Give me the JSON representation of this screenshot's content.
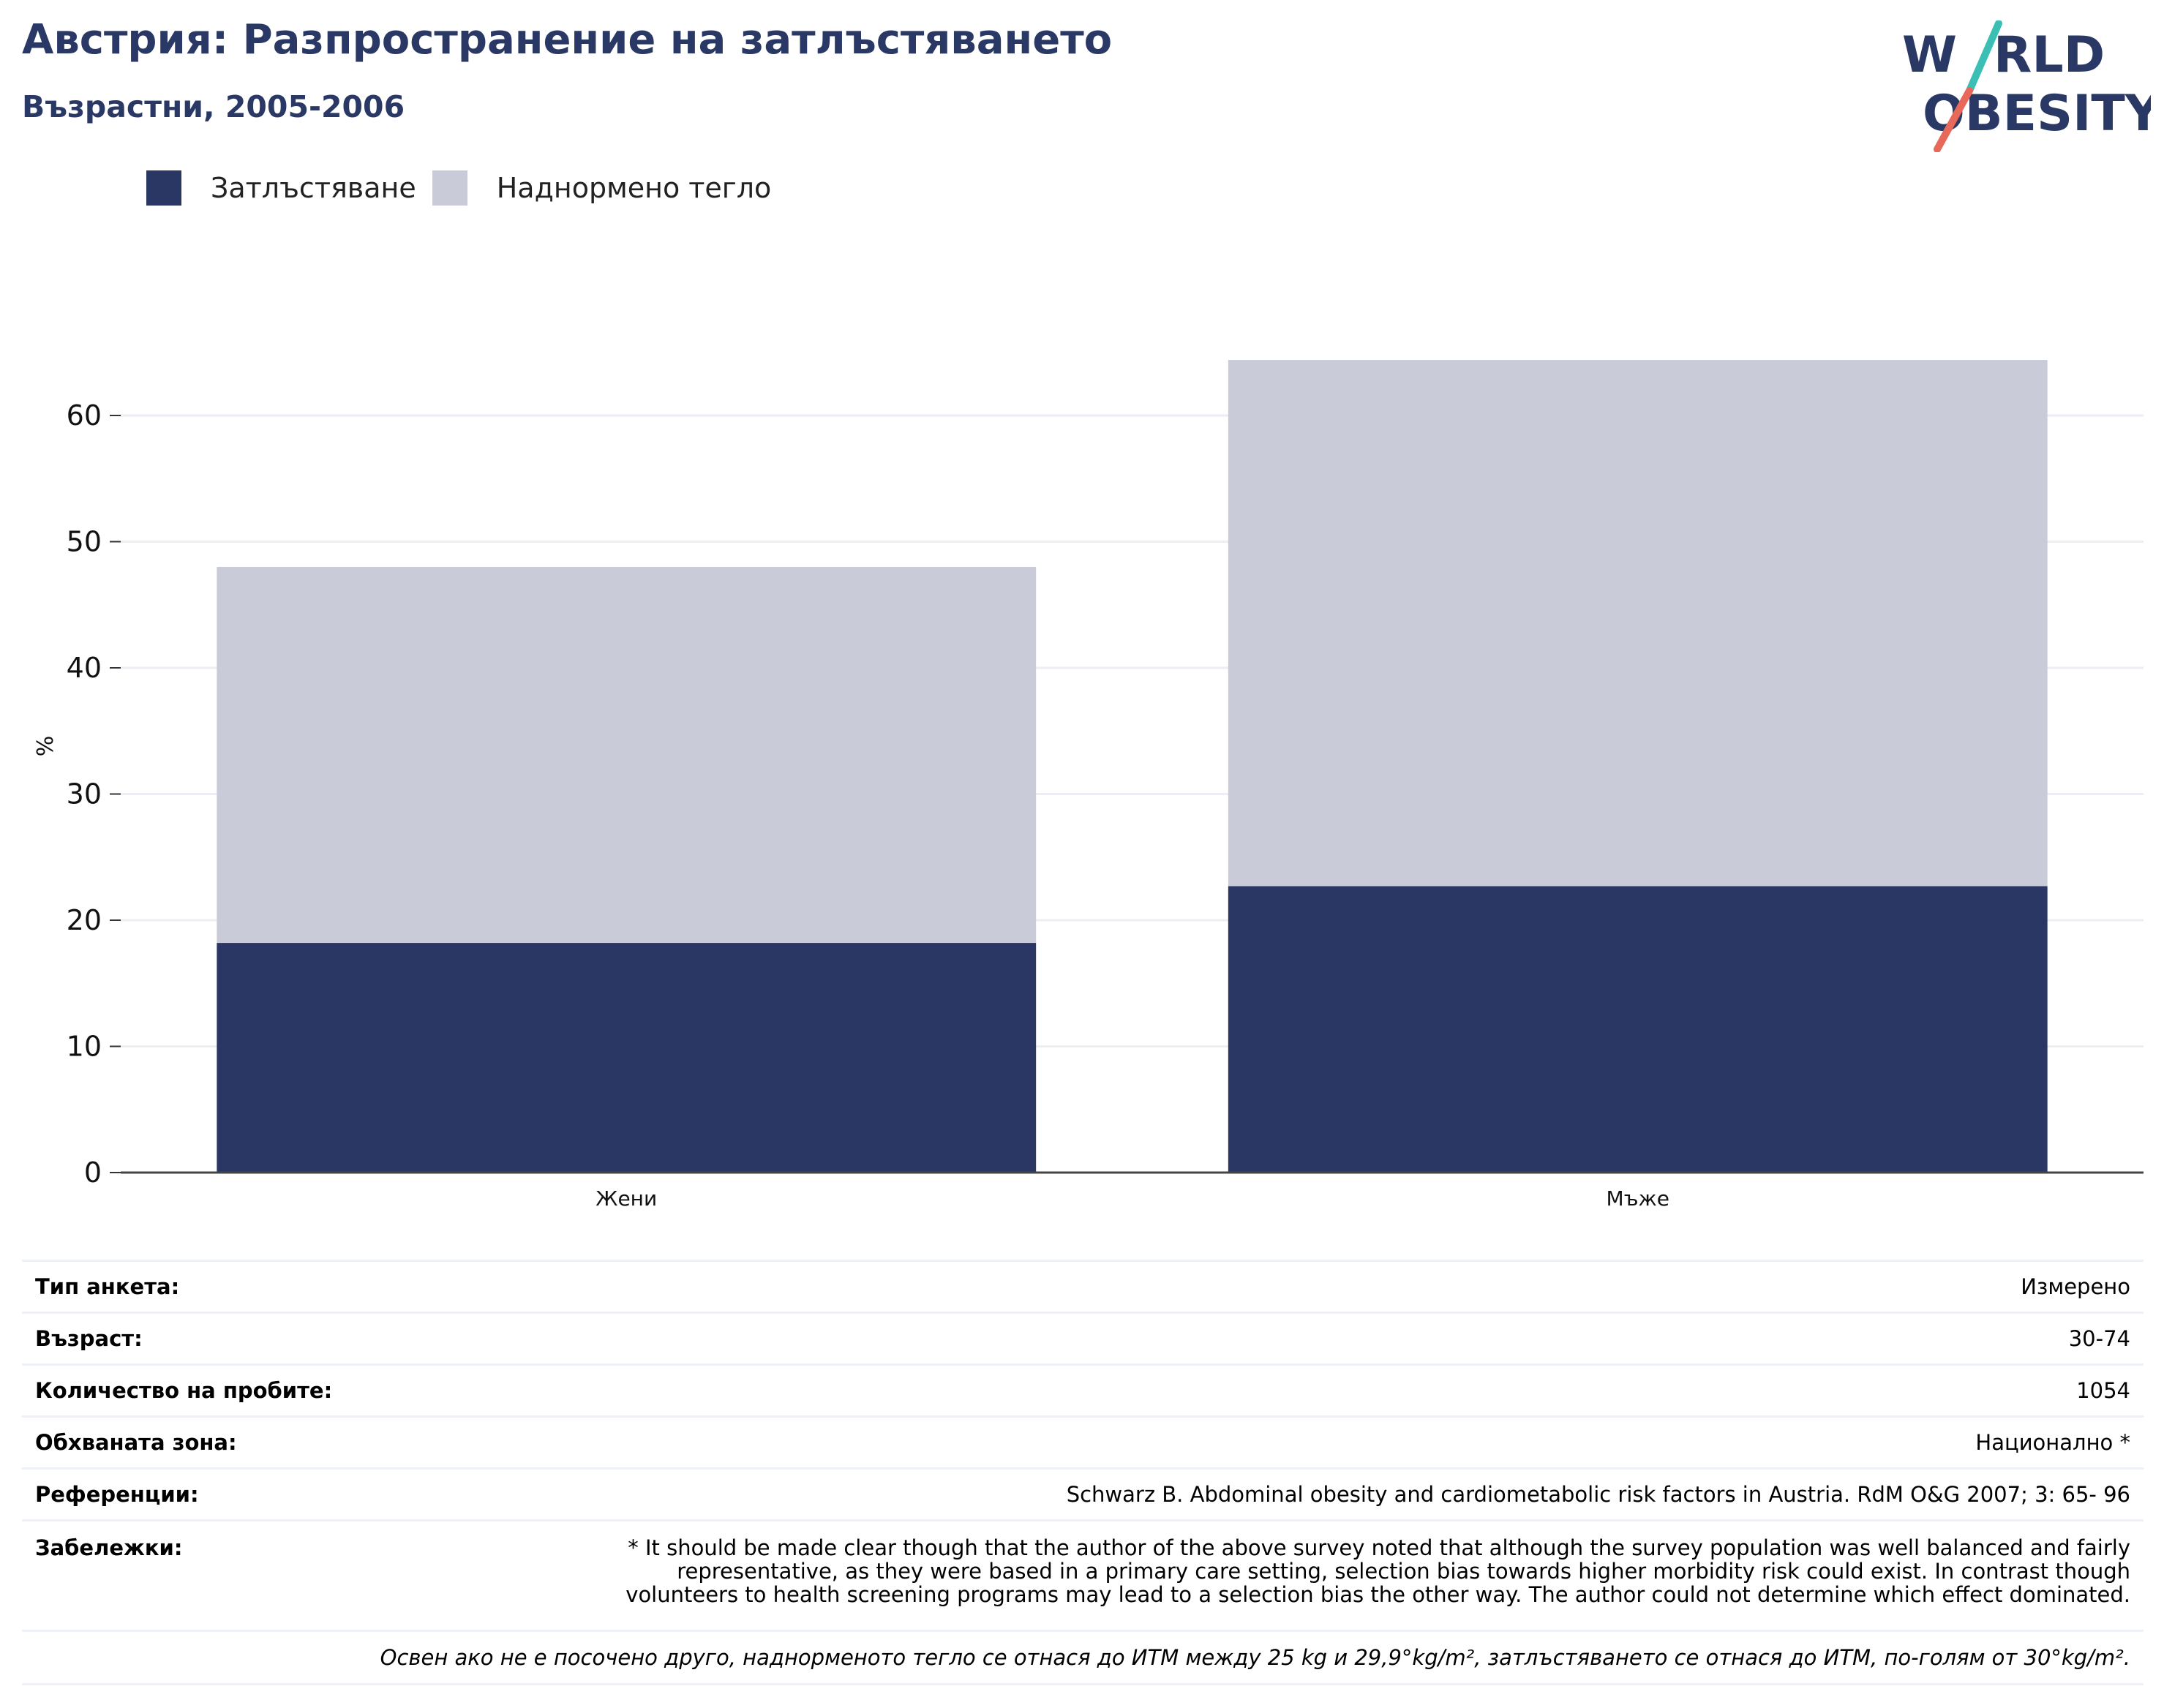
{
  "header": {
    "title": "Австрия: Разпространение на затлъстяването",
    "subtitle": "Възрастни, 2005-2006"
  },
  "logo": {
    "line1": "WORLD",
    "line2": "OBESITY"
  },
  "colors": {
    "obesity": "#2a3765",
    "overweight": "#c9ccd8",
    "title": "#2a3865",
    "logo_teal": "#3bbfb4",
    "logo_red": "#e8685a"
  },
  "chart_data": {
    "type": "bar",
    "stacked": true,
    "categories": [
      "Жени",
      "Мъже"
    ],
    "series": [
      {
        "name": "Затлъстяване",
        "values": [
          18.2,
          22.7
        ]
      },
      {
        "name": "Наднормено тегло",
        "values": [
          29.8,
          41.7
        ]
      }
    ],
    "ylabel": "%",
    "xlabel": "",
    "ylim": [
      0,
      65
    ],
    "yticks": [
      0,
      10,
      20,
      30,
      40,
      50,
      60
    ],
    "grid": true,
    "legend_position": "top-left"
  },
  "info": {
    "rows": [
      {
        "key": "Тип анкета:",
        "value": "Измерено"
      },
      {
        "key": "Възраст:",
        "value": "30-74"
      },
      {
        "key": "Количество на пробите:",
        "value": "1054"
      },
      {
        "key": "Обхваната зона:",
        "value": "Национално *"
      },
      {
        "key": "Референции:",
        "value": "Schwarz B. Abdominal obesity and cardiometabolic risk factors in Austria. RdM O&G 2007; 3: 65- 96"
      }
    ],
    "notes_key": "Забележки:",
    "notes_lines": [
      "* It should be made clear though that the author of the above survey noted that although the survey population was well balanced and fairly",
      "representative, as they were based in a primary care setting, selection bias towards higher morbidity risk could exist. In contrast though",
      "volunteers to health screening programs may lead to a selection bias the other way. The author could not determine which effect dominated."
    ],
    "footnote": "Освен ако не е посочено друго, наднорменото тегло се отнася до ИТМ между 25 kg и 29,9°kg/m², затлъстяването се отнася до ИТМ, по-голям от 30°kg/m²."
  }
}
